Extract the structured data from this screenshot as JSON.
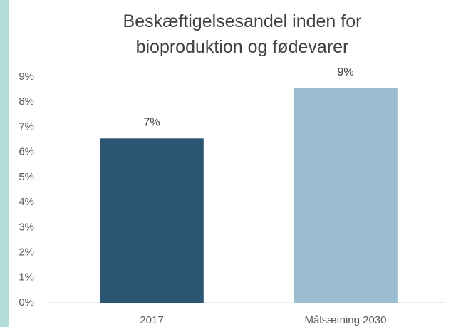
{
  "chart_data": {
    "type": "bar",
    "title": "Beskæftigelsesandel inden for bioproduktion og fødevarer",
    "categories": [
      "2017",
      "Målsætning 2030"
    ],
    "values": [
      6.55,
      8.55
    ],
    "value_labels": [
      "7%",
      "9%"
    ],
    "colors": [
      "#2b5573",
      "#9bbdd0"
    ],
    "ylim": [
      0,
      9
    ],
    "yticks": [
      {
        "value": 0,
        "label": "0%"
      },
      {
        "value": 1,
        "label": "1%"
      },
      {
        "value": 2,
        "label": "2%"
      },
      {
        "value": 3,
        "label": "3%"
      },
      {
        "value": 4,
        "label": "4%"
      },
      {
        "value": 5,
        "label": "5%"
      },
      {
        "value": 6,
        "label": "6%"
      },
      {
        "value": 7,
        "label": "7%"
      },
      {
        "value": 8,
        "label": "8%"
      },
      {
        "value": 9,
        "label": "9%"
      }
    ],
    "grid": false
  }
}
